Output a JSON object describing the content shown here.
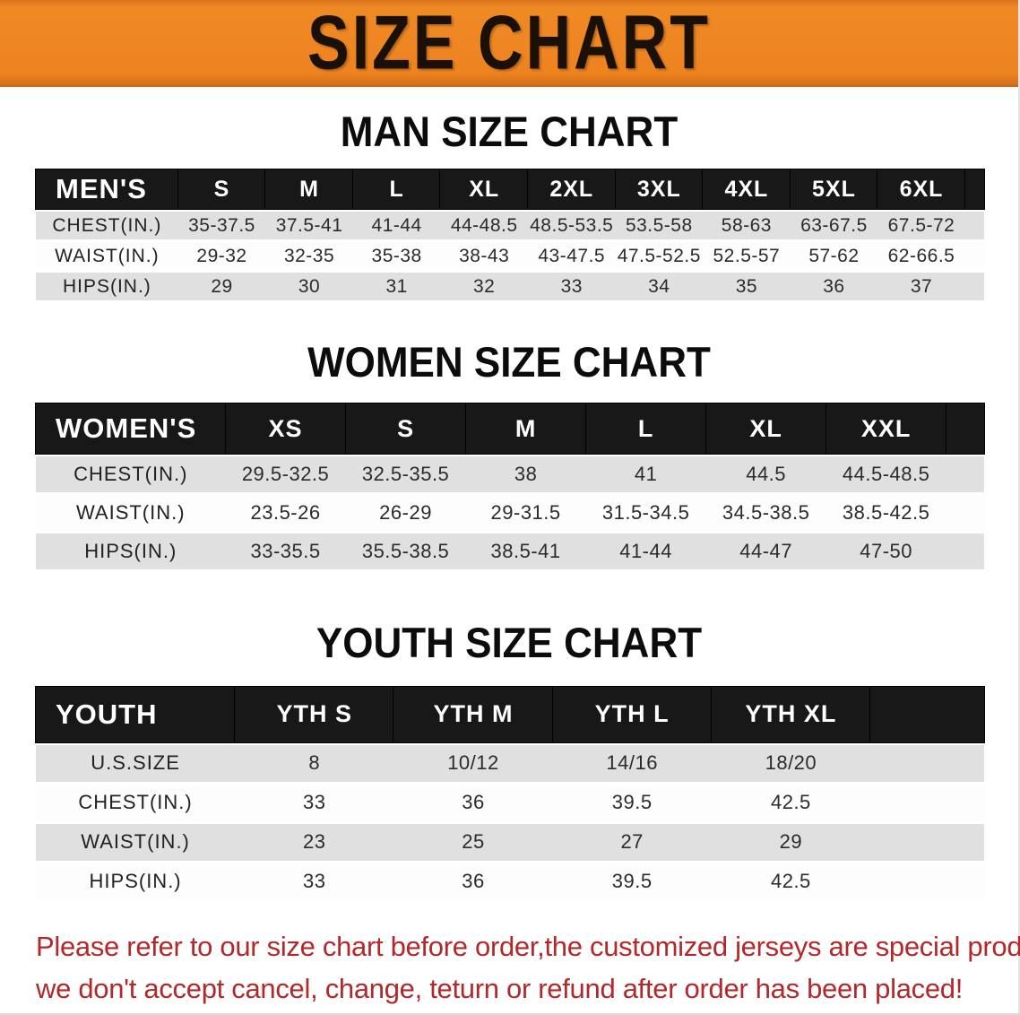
{
  "banner": {
    "title": "SIZE CHART"
  },
  "colors": {
    "banner_bg": "#e8821f",
    "banner_text": "#1a1006",
    "header_bg": "#181818",
    "header_text": "#ffffff",
    "row_gray": "#e0e0e0",
    "row_white": "#fdfdfd",
    "disclaimer_red": "#b3292b"
  },
  "sections": [
    {
      "id": "men",
      "heading": "MAN SIZE CHART",
      "label_header": "MEN'S",
      "size_headers": [
        "S",
        "M",
        "L",
        "XL",
        "2XL",
        "3XL",
        "4XL",
        "5XL",
        "6XL"
      ],
      "rows": [
        {
          "label": "CHEST(IN.)",
          "values": [
            "35-37.5",
            "37.5-41",
            "41-44",
            "44-48.5",
            "48.5-53.5",
            "53.5-58",
            "58-63",
            "63-67.5",
            "67.5-72"
          ]
        },
        {
          "label": "WAIST(IN.)",
          "values": [
            "29-32",
            "32-35",
            "35-38",
            "38-43",
            "43-47.5",
            "47.5-52.5",
            "52.5-57",
            "57-62",
            "62-66.5"
          ]
        },
        {
          "label": "HIPS(IN.)",
          "values": [
            "29",
            "30",
            "31",
            "32",
            "33",
            "34",
            "35",
            "36",
            "37"
          ]
        }
      ]
    },
    {
      "id": "women",
      "heading": "WOMEN SIZE CHART",
      "label_header": "WOMEN'S",
      "size_headers": [
        "XS",
        "S",
        "M",
        "L",
        "XL",
        "XXL"
      ],
      "rows": [
        {
          "label": "CHEST(IN.)",
          "values": [
            "29.5-32.5",
            "32.5-35.5",
            "38",
            "41",
            "44.5",
            "44.5-48.5"
          ]
        },
        {
          "label": "WAIST(IN.)",
          "values": [
            "23.5-26",
            "26-29",
            "29-31.5",
            "31.5-34.5",
            "34.5-38.5",
            "38.5-42.5"
          ]
        },
        {
          "label": "HIPS(IN.)",
          "values": [
            "33-35.5",
            "35.5-38.5",
            "38.5-41",
            "41-44",
            "44-47",
            "47-50"
          ]
        }
      ]
    },
    {
      "id": "youth",
      "heading": "YOUTH SIZE CHART",
      "label_header": "YOUTH",
      "size_headers": [
        "YTH S",
        "YTH M",
        "YTH L",
        "YTH XL"
      ],
      "rows": [
        {
          "label": "U.S.SIZE",
          "values": [
            "8",
            "10/12",
            "14/16",
            "18/20"
          ]
        },
        {
          "label": "CHEST(IN.)",
          "values": [
            "33",
            "36",
            "39.5",
            "42.5"
          ]
        },
        {
          "label": "WAIST(IN.)",
          "values": [
            "23",
            "25",
            "27",
            "29"
          ]
        },
        {
          "label": "HIPS(IN.)",
          "values": [
            "33",
            "36",
            "39.5",
            "42.5"
          ]
        }
      ]
    }
  ],
  "disclaimer": {
    "line1": "Please refer to our size chart before order,the customized jerseys are special products,",
    "line2": "we don't accept cancel, change, teturn or refund after order has been placed!"
  }
}
